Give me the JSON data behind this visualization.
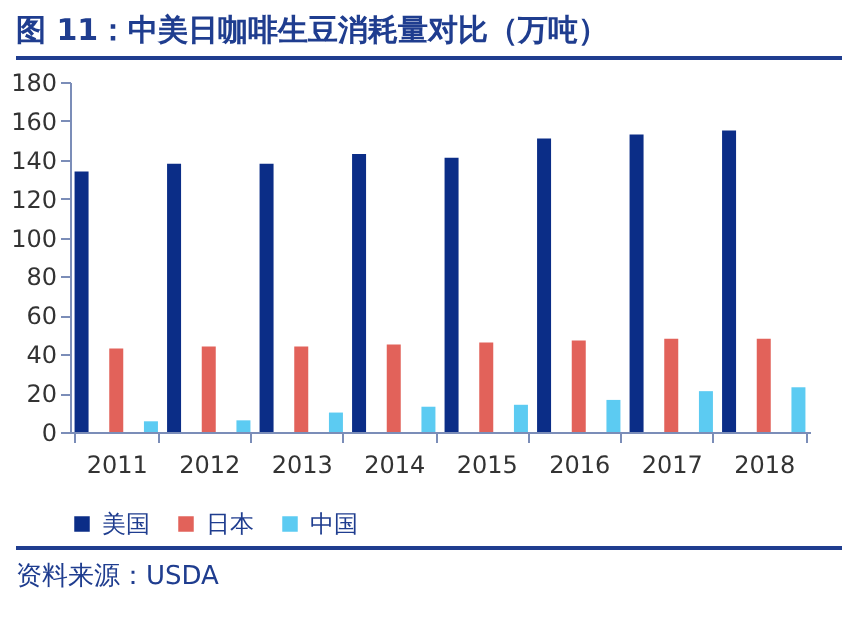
{
  "chart_data": {
    "type": "bar",
    "title": "图 11：中美日咖啡生豆消耗量对比（万吨）",
    "categories": [
      "2011",
      "2012",
      "2013",
      "2014",
      "2015",
      "2016",
      "2017",
      "2018"
    ],
    "series": [
      {
        "name": "美国",
        "color": "#0b2d87",
        "values": [
          134,
          138,
          138,
          143,
          141,
          151,
          153,
          155
        ]
      },
      {
        "name": "日本",
        "color": "#e2625a",
        "values": [
          43,
          44,
          44,
          45,
          46,
          47,
          48,
          48
        ]
      },
      {
        "name": "中国",
        "color": "#5ccbf2",
        "values": [
          5.5,
          6,
          10,
          13,
          14,
          16.5,
          21,
          23
        ]
      }
    ],
    "ylim": [
      0,
      180
    ],
    "yticks": [
      0,
      20,
      40,
      60,
      80,
      100,
      120,
      140,
      160,
      180
    ],
    "grid": false,
    "legend": "bottom",
    "annotations": [
      "资料来源：USDA"
    ]
  }
}
